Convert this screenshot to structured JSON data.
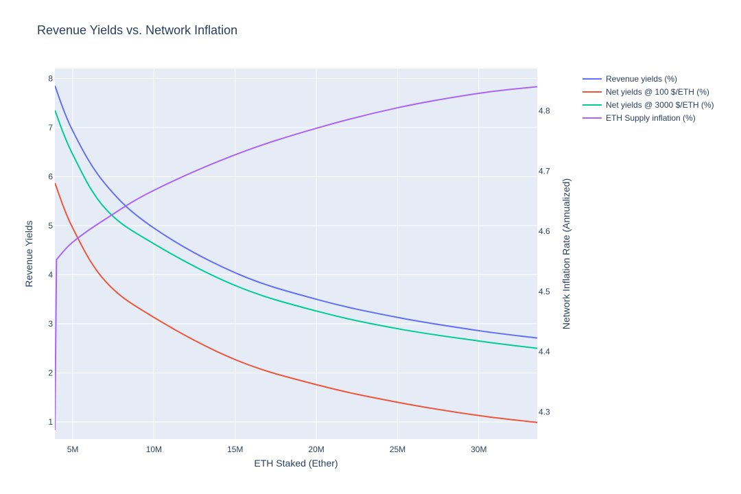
{
  "chart_data": {
    "type": "line",
    "title": "Revenue Yields vs. Network Inflation",
    "xlabel": "ETH Staked (Ether)",
    "ylabel": "Revenue Yields",
    "y2label": "Network Inflation Rate (Annualized)",
    "xlim": [
      3900000,
      33600000
    ],
    "ylim": [
      0.65,
      8.2
    ],
    "y2lim": [
      4.255,
      4.87
    ],
    "x_ticks": [
      5000000,
      10000000,
      15000000,
      20000000,
      25000000,
      30000000
    ],
    "x_tick_labels": [
      "5M",
      "10M",
      "15M",
      "20M",
      "25M",
      "30M"
    ],
    "y_ticks": [
      1,
      2,
      3,
      4,
      5,
      6,
      7,
      8
    ],
    "y_tick_labels": [
      "1",
      "2",
      "3",
      "4",
      "5",
      "6",
      "7",
      "8"
    ],
    "y2_ticks": [
      4.3,
      4.4,
      4.5,
      4.6,
      4.7,
      4.8
    ],
    "y2_tick_labels": [
      "4.3",
      "4.4",
      "4.5",
      "4.6",
      "4.7",
      "4.8"
    ],
    "grid": true,
    "legend_position": "right",
    "plot_bgcolor": "#e5ecf6",
    "x": [
      3900000,
      5000000,
      7000000,
      10000000,
      15000000,
      20000000,
      25000000,
      30000000,
      33600000
    ],
    "series": [
      {
        "name": "Revenue yields (%)",
        "color": "#636efa",
        "axis": "y",
        "x": [
          3900000,
          5000000,
          7000000,
          10000000,
          15000000,
          20000000,
          25000000,
          30000000,
          33600000
        ],
        "values": [
          7.85,
          6.93,
          5.85,
          4.95,
          4.04,
          3.5,
          3.13,
          2.86,
          2.71
        ]
      },
      {
        "name": "Net yields @ 100 $/ETH (%)",
        "color": "#ef553b",
        "axis": "y",
        "x": [
          3900000,
          5000000,
          7000000,
          10000000,
          15000000,
          20000000,
          25000000,
          30000000,
          33600000
        ],
        "values": [
          5.87,
          4.95,
          3.87,
          3.13,
          2.27,
          1.76,
          1.4,
          1.13,
          0.99
        ]
      },
      {
        "name": "Net yields @ 3000 $/ETH (%)",
        "color": "#00cc96",
        "axis": "y",
        "x": [
          3900000,
          5000000,
          7000000,
          10000000,
          15000000,
          20000000,
          25000000,
          30000000,
          33600000
        ],
        "values": [
          7.35,
          6.45,
          5.35,
          4.63,
          3.78,
          3.26,
          2.9,
          2.65,
          2.5
        ]
      },
      {
        "name": "ETH Supply inflation (%)",
        "color": "#ab63fa",
        "axis": "y2",
        "x": [
          3900000,
          4000000,
          5000000,
          7000000,
          10000000,
          15000000,
          20000000,
          25000000,
          30000000,
          33600000
        ],
        "values": [
          4.27,
          4.553,
          4.582,
          4.62,
          4.668,
          4.727,
          4.771,
          4.805,
          4.829,
          4.84
        ]
      }
    ]
  }
}
